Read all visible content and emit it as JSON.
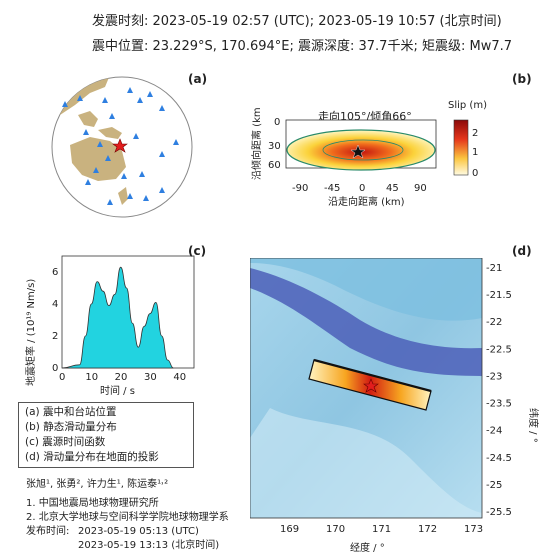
{
  "header": {
    "line1": "发震时刻: 2023-05-19 02:57 (UTC); 2023-05-19 10:57 (北京时间)",
    "line2": "震中位置: 23.229°S, 170.694°E; 震源深度: 37.7千米; 矩震级: Mw7.7"
  },
  "panels": {
    "a": "(a)",
    "b": "(b)",
    "c": "(c)",
    "d": "(d)"
  },
  "slip_panel": {
    "title": "走向105°/倾角66°",
    "colorbar_title": "Slip (m)",
    "colorbar_ticks": [
      "2",
      "1",
      "0"
    ],
    "x_ticks": [
      "-90",
      "-45",
      "0",
      "45",
      "90"
    ],
    "y_ticks": [
      "0",
      "30",
      "60"
    ],
    "xlabel": "沿走向距离 (km)",
    "ylabel": "沿倾向距离 (km)"
  },
  "stf_panel": {
    "ylabel": "地震矩率 / (10¹⁹ Nm/s)",
    "xlabel": "时间 / s",
    "x_ticks": [
      "0",
      "10",
      "20",
      "30",
      "40"
    ],
    "y_ticks": [
      "0",
      "2",
      "4",
      "6"
    ]
  },
  "map_panel": {
    "lon_ticks": [
      "169",
      "170",
      "171",
      "172",
      "173"
    ],
    "lat_ticks": [
      "-21",
      "-21.5",
      "-22",
      "-22.5",
      "-23",
      "-23.5",
      "-24",
      "-24.5",
      "-25",
      "-25.5"
    ],
    "xlabel": "经度 / °",
    "ylabel": "纬度 / °"
  },
  "legend": {
    "items": [
      "(a) 震中和台站位置",
      "(b) 静态滑动量分布",
      "(c) 震源时间函数",
      "(d) 滑动量分布在地面的投影"
    ]
  },
  "credits": {
    "authors": "张旭¹, 张勇², 许力生¹, 陈运泰¹˒²",
    "aff1": "1. 中国地震局地球物理研究所",
    "aff2": "2. 北京大学地球与空间科学学院地球物理学系",
    "release_label": "发布时间:",
    "release_utc": "2023-05-19  05:13 (UTC)",
    "release_bj": "2023-05-19  13:13 (北京时间)"
  },
  "chart_data": [
    {
      "type": "area",
      "title": "",
      "xlabel": "时间 / s",
      "ylabel": "地震矩率 / (10¹⁹ Nm/s)",
      "xlim": [
        0,
        45
      ],
      "ylim": [
        0,
        7
      ],
      "x": [
        0,
        6,
        8,
        10,
        12,
        14,
        16,
        18,
        20,
        22,
        24,
        26,
        28,
        30,
        32,
        34,
        36,
        38
      ],
      "values": [
        0,
        0.2,
        2.0,
        4.0,
        5.4,
        4.8,
        3.9,
        4.6,
        6.3,
        5.0,
        2.8,
        1.3,
        2.6,
        3.4,
        4.1,
        2.0,
        0.5,
        0
      ],
      "colors": {
        "fill": "#22d3e0",
        "line": "#333333"
      }
    }
  ]
}
